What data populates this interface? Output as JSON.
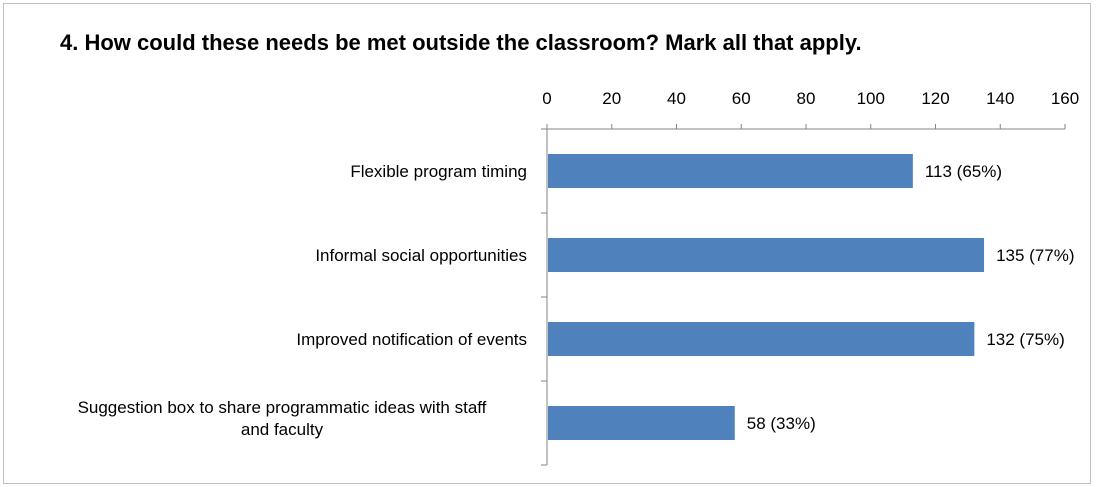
{
  "chart_data": {
    "type": "bar",
    "orientation": "horizontal",
    "title": "4. How could these needs be met outside the classroom? Mark all that apply.",
    "x_axis_position": "top",
    "xlim": [
      0,
      160
    ],
    "x_ticks": [
      0,
      20,
      40,
      60,
      80,
      100,
      120,
      140,
      160
    ],
    "grid": false,
    "bar_color": "#4f81bd",
    "categories": [
      [
        "Flexible program timing"
      ],
      [
        "Informal social opportunities"
      ],
      [
        "Improved notification of events"
      ],
      [
        "Suggestion box to share programmatic ideas with staff",
        "and faculty"
      ]
    ],
    "values": [
      113,
      135,
      132,
      58
    ],
    "data_labels": [
      "113 (65%)",
      "135 (77%)",
      "132 (75%)",
      "58 (33%)"
    ]
  }
}
